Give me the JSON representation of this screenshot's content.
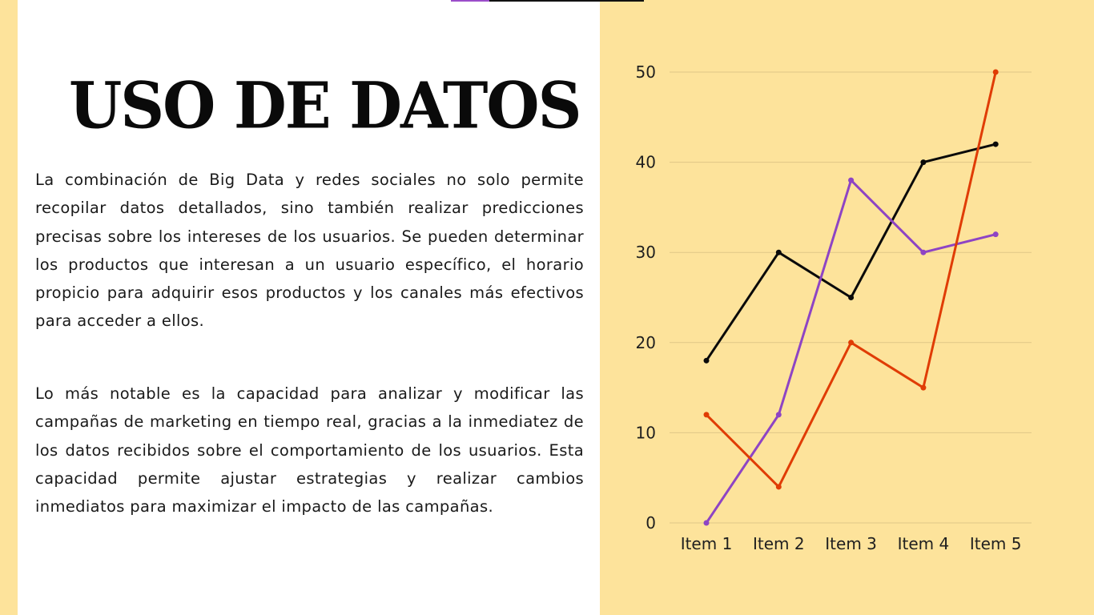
{
  "slide": {
    "title": "USO DE DATOS",
    "paragraphs": [
      "La combinación de Big Data y redes sociales no solo permite recopilar datos detallados, sino también realizar predicciones precisas sobre los intereses de los usuarios. Se pueden determinar los productos que interesan a un usuario específico, el horario propicio para adquirir esos productos y los canales más efectivos para acceder a ellos.",
      "Lo más notable es la capacidad para analizar y modificar las campañas de marketing en tiempo real, gracias a la inmediatez de los datos recibidos sobre el comportamiento de los usuarios. Esta capacidad permite ajustar estrategias y realizar cambios inmediatos para maximizar el impacto de las campañas."
    ]
  },
  "colors": {
    "background": "#fde39b",
    "panel": "#ffffff",
    "accent_purple": "#9b4dca",
    "gridline": "#e0c787"
  },
  "chart_data": {
    "type": "line",
    "categories": [
      "Item 1",
      "Item 2",
      "Item 3",
      "Item 4",
      "Item 5"
    ],
    "ylim": [
      0,
      50
    ],
    "yticks": [
      0,
      10,
      20,
      30,
      40,
      50
    ],
    "grid": true,
    "legend": "none",
    "series": [
      {
        "color": "#0a0a0a",
        "values": [
          18,
          30,
          25,
          40,
          42
        ]
      },
      {
        "color": "#8e44c4",
        "values": [
          0,
          12,
          38,
          30,
          32
        ]
      },
      {
        "color": "#e03c05",
        "values": [
          12,
          4,
          20,
          15,
          50
        ]
      }
    ]
  }
}
